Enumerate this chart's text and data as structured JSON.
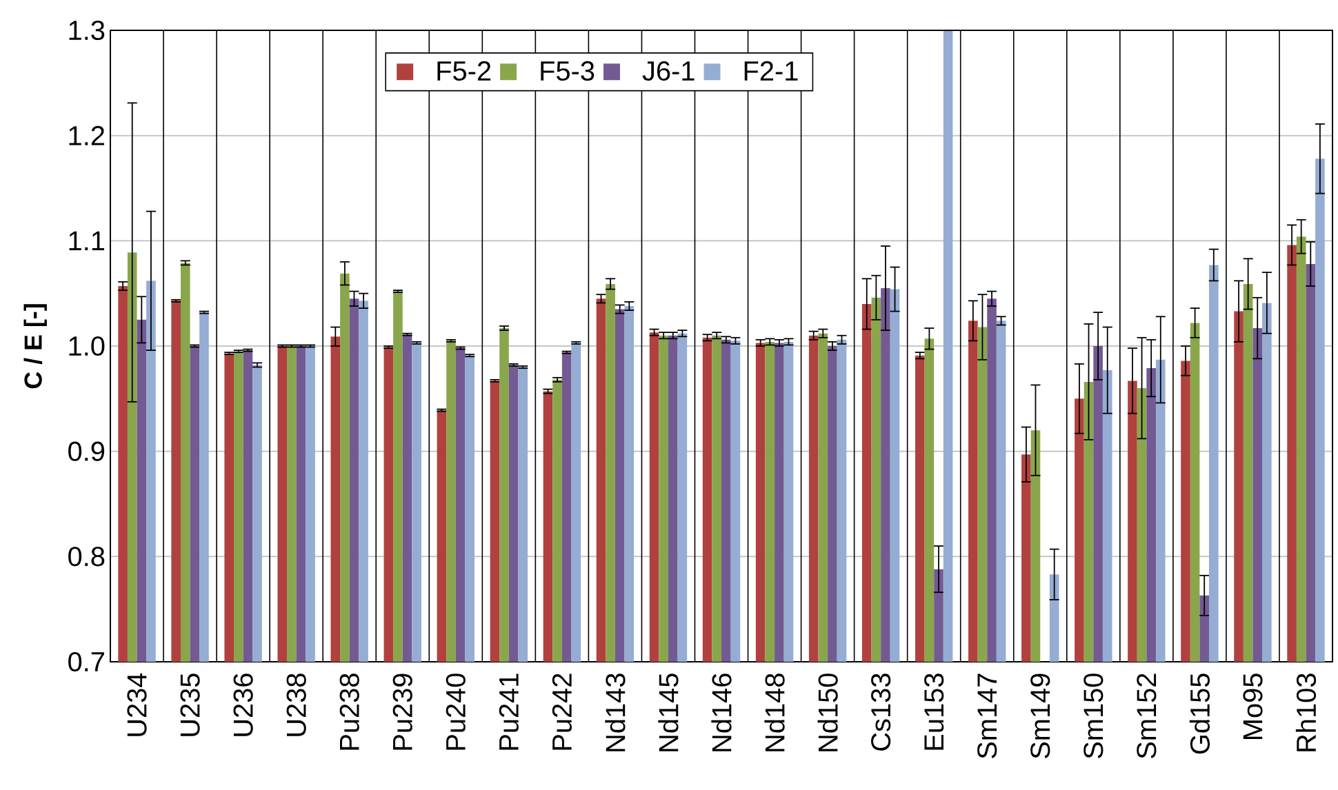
{
  "chart_data": {
    "type": "bar",
    "ylabel": "C / E [-]",
    "categories": [
      "U234",
      "U235",
      "U236",
      "U238",
      "Pu238",
      "Pu239",
      "Pu240",
      "Pu241",
      "Pu242",
      "Nd143",
      "Nd145",
      "Nd146",
      "Nd148",
      "Nd150",
      "Cs133",
      "Eu153",
      "Sm147",
      "Sm149",
      "Sm150",
      "Sm152",
      "Gd155",
      "Mo95",
      "Rh103"
    ],
    "series": [
      {
        "name": "F5-2",
        "color": "#b0413e",
        "values": [
          1.057,
          1.043,
          0.993,
          1.0,
          1.009,
          0.999,
          0.939,
          0.967,
          0.957,
          1.045,
          1.013,
          1.008,
          1.003,
          1.01,
          1.04,
          0.991,
          1.024,
          0.897,
          0.95,
          0.967,
          0.986,
          1.033,
          1.096
        ],
        "errors": [
          0.004,
          0.001,
          0.001,
          0.001,
          0.009,
          0.001,
          0.001,
          0.001,
          0.002,
          0.004,
          0.003,
          0.003,
          0.003,
          0.004,
          0.024,
          0.003,
          0.019,
          0.026,
          0.033,
          0.031,
          0.014,
          0.029,
          0.019
        ]
      },
      {
        "name": "F5-3",
        "color": "#8aa64c",
        "values": [
          1.089,
          1.079,
          0.995,
          1.0,
          1.069,
          1.052,
          1.005,
          1.017,
          0.968,
          1.059,
          1.01,
          1.01,
          1.004,
          1.012,
          1.046,
          1.007,
          1.018,
          0.92,
          0.966,
          0.96,
          1.022,
          1.059,
          1.104
        ],
        "errors": [
          0.142,
          0.002,
          0.001,
          0.001,
          0.011,
          0.001,
          0.001,
          0.002,
          0.002,
          0.005,
          0.003,
          0.003,
          0.003,
          0.004,
          0.021,
          0.01,
          0.031,
          0.043,
          0.055,
          0.048,
          0.014,
          0.024,
          0.016
        ]
      },
      {
        "name": "J6-1",
        "color": "#735a93",
        "values": [
          1.025,
          1.0,
          0.996,
          1.0,
          1.045,
          1.011,
          0.998,
          0.982,
          0.994,
          1.035,
          1.01,
          1.006,
          1.003,
          1.0,
          1.055,
          0.788,
          1.045,
          null,
          1.0,
          0.979,
          0.763,
          1.017,
          1.078
        ],
        "errors": [
          0.022,
          0.001,
          0.001,
          0.001,
          0.007,
          0.001,
          0.001,
          0.001,
          0.001,
          0.004,
          0.003,
          0.003,
          0.003,
          0.004,
          0.04,
          0.022,
          0.007,
          null,
          0.032,
          0.027,
          0.019,
          0.029,
          0.021
        ]
      },
      {
        "name": "F2-1",
        "color": "#95acd3",
        "values": [
          1.062,
          1.032,
          0.982,
          1.0,
          1.043,
          1.003,
          0.991,
          0.98,
          1.003,
          1.038,
          1.012,
          1.005,
          1.004,
          1.006,
          1.054,
          1.3,
          1.024,
          0.783,
          0.977,
          0.987,
          1.077,
          1.041,
          1.178
        ],
        "errors": [
          0.066,
          0.001,
          0.002,
          0.001,
          0.007,
          0.001,
          0.001,
          0.001,
          0.001,
          0.004,
          0.003,
          0.003,
          0.003,
          0.004,
          0.021,
          null,
          0.004,
          0.024,
          0.041,
          0.041,
          0.015,
          0.029,
          0.033
        ]
      }
    ],
    "ylim": [
      0.7,
      1.3
    ],
    "yticks": [
      {
        "value": 0.7,
        "label": "0.7"
      },
      {
        "value": 0.8,
        "label": "0.8"
      },
      {
        "value": 0.9,
        "label": "0.9"
      },
      {
        "value": 1.0,
        "label": "1.0"
      },
      {
        "value": 1.1,
        "label": "1.1"
      },
      {
        "value": 1.2,
        "label": "1.2"
      },
      {
        "value": 1.3,
        "label": "1.3"
      }
    ],
    "grid": true,
    "legend": "top"
  }
}
